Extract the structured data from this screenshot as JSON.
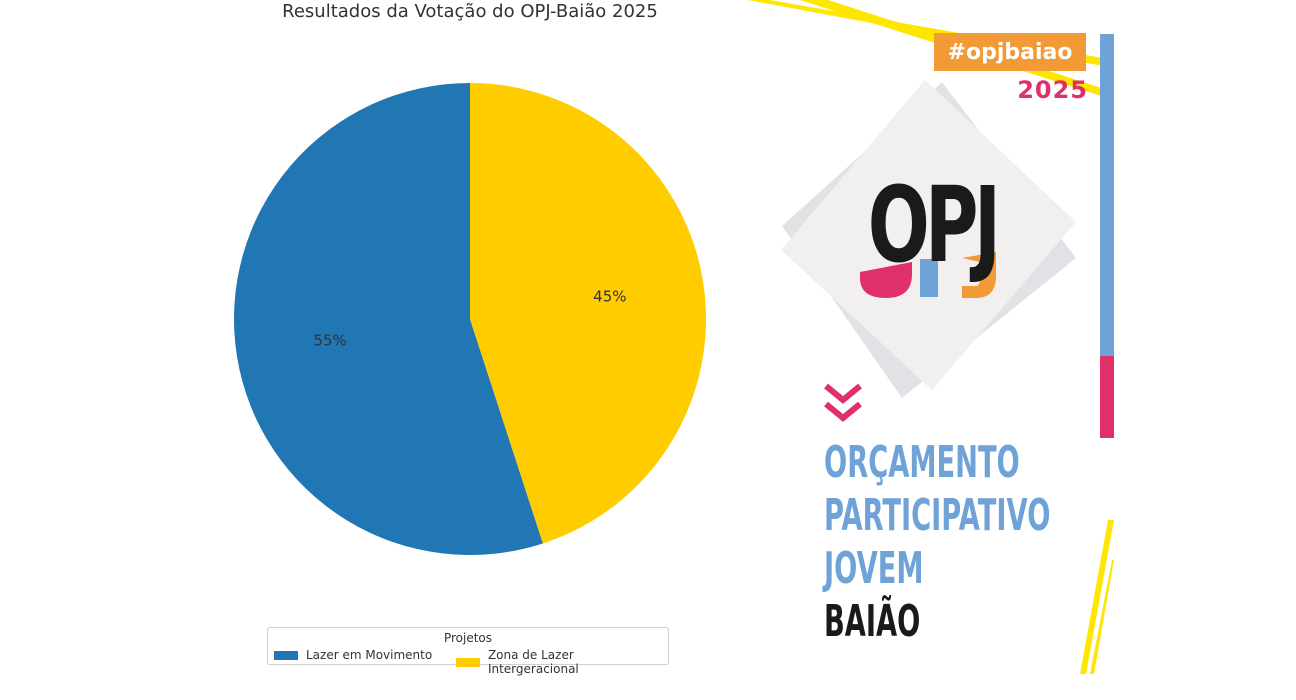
{
  "chart_data": {
    "type": "pie",
    "title": "Resultados da Votação do OPJ-Baião 2025",
    "categories": [
      "Lazer em Movimento",
      "Zona de Lazer Intergeracional"
    ],
    "values": [
      55,
      45
    ],
    "labels": [
      "55%",
      "45%"
    ],
    "colors": [
      "#2077b4",
      "#ffcc00"
    ],
    "start_angle_deg": 90,
    "direction": "counterclockwise",
    "legend": {
      "title": "Projetos",
      "placement": "bottom-center"
    }
  },
  "poster": {
    "hashtag": "#opjbaiao",
    "year": "2025",
    "logo_text": "OPJ",
    "lines": [
      "ORÇAMENTO",
      "PARTICIPATIVO",
      "JOVEM",
      "BAIÃO"
    ],
    "colors": {
      "orange": "#f29a36",
      "pink": "#e0306a",
      "blue": "#6fa3d8",
      "yellow": "#ffe600",
      "dark": "#1a1a1a",
      "paper": "#f1f0ee",
      "shadow": "#e3e1e6"
    },
    "icons": [
      "chevron-double-down-icon"
    ]
  }
}
